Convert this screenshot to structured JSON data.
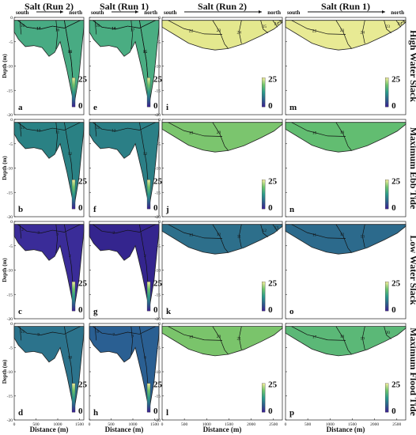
{
  "figure": {
    "column_headers": [
      "Salt (Run 2)",
      "Salt (Run 1)",
      "Salt (Run 2)",
      "Salt (Run 1)"
    ],
    "direction": {
      "left": "south",
      "right": "north"
    },
    "row_labels": [
      "High Water Slack",
      "Maximum Ebb Tide",
      "Low Water Slack",
      "Maximum Flood Tide"
    ],
    "y_label": "Depth (m)",
    "x_label": "Distance (m)",
    "colorbar": {
      "max": "25",
      "min": "0",
      "colors": [
        "#3b1f8f",
        "#2c5f8a",
        "#2a9a8a",
        "#6cc36c",
        "#f2ec9b"
      ]
    }
  },
  "chart_data": [
    {
      "panel": "a",
      "type": "heatmap",
      "title": "Salt (Run 2)",
      "row": "High Water Slack",
      "section": "left",
      "xlabel": "",
      "ylabel": "Depth (m)",
      "xlim": [
        0,
        1600
      ],
      "ylim": [
        -20,
        0
      ],
      "fill": "#48ab83",
      "contour_labels": [
        "14",
        "15",
        "16",
        "16",
        "17",
        "18"
      ]
    },
    {
      "panel": "e",
      "type": "heatmap",
      "title": "Salt (Run 1)",
      "row": "High Water Slack",
      "section": "left",
      "xlabel": "",
      "ylabel": "",
      "xlim": [
        0,
        1600
      ],
      "ylim": [
        -20,
        0
      ],
      "fill": "#4aad82",
      "contour_labels": [
        "14",
        "15",
        "16",
        "17",
        "16",
        "15"
      ]
    },
    {
      "panel": "i",
      "type": "heatmap",
      "title": "Salt (Run 2)",
      "row": "High Water Slack",
      "section": "right",
      "xlabel": "",
      "ylabel": "",
      "xlim": [
        0,
        2700
      ],
      "ylim": [
        -20,
        0
      ],
      "fill": "#e4e88e",
      "contour_labels": [
        "22",
        "23",
        "24",
        "25",
        "24",
        "23"
      ]
    },
    {
      "panel": "m",
      "type": "heatmap",
      "title": "Salt (Run 1)",
      "row": "High Water Slack",
      "section": "right",
      "xlabel": "",
      "ylabel": "",
      "xlim": [
        0,
        2700
      ],
      "ylim": [
        -20,
        0
      ],
      "fill": "#e8ea94",
      "contour_labels": [
        "22",
        "23",
        "24",
        "23",
        "24",
        "25"
      ]
    },
    {
      "panel": "b",
      "type": "heatmap",
      "row": "Maximum Ebb Tide",
      "section": "left",
      "xlabel": "",
      "ylabel": "Depth (m)",
      "xlim": [
        0,
        1600
      ],
      "ylim": [
        -20,
        0
      ],
      "fill": "#2a8184",
      "contour_labels": [
        "13",
        "12",
        "11",
        "11"
      ]
    },
    {
      "panel": "f",
      "type": "heatmap",
      "row": "Maximum Ebb Tide",
      "section": "left",
      "xlabel": "",
      "ylabel": "",
      "xlim": [
        0,
        1600
      ],
      "ylim": [
        -20,
        0
      ],
      "fill": "#2b7f86",
      "contour_labels": [
        "12",
        "12",
        "11"
      ]
    },
    {
      "panel": "j",
      "type": "heatmap",
      "row": "Maximum Ebb Tide",
      "section": "right",
      "xlabel": "",
      "ylabel": "",
      "xlim": [
        0,
        2700
      ],
      "ylim": [
        -20,
        0
      ],
      "fill": "#7bc56e",
      "contour_labels": [
        "19",
        "20"
      ]
    },
    {
      "panel": "n",
      "type": "heatmap",
      "row": "Maximum Ebb Tide",
      "section": "right",
      "xlabel": "",
      "ylabel": "",
      "xlim": [
        0,
        2700
      ],
      "ylim": [
        -20,
        0
      ],
      "fill": "#62bd71",
      "contour_labels": [
        "18",
        "19"
      ]
    },
    {
      "panel": "c",
      "type": "heatmap",
      "row": "Low Water Slack",
      "section": "left",
      "xlabel": "",
      "ylabel": "Depth (m)",
      "xlim": [
        0,
        1600
      ],
      "ylim": [
        -20,
        0
      ],
      "fill": "#3a2c98",
      "contour_labels": [
        "3",
        "2",
        "2",
        "3"
      ]
    },
    {
      "panel": "g",
      "type": "heatmap",
      "row": "Low Water Slack",
      "section": "left",
      "xlabel": "",
      "ylabel": "",
      "xlim": [
        0,
        1600
      ],
      "ylim": [
        -20,
        0
      ],
      "fill": "#34258e",
      "contour_labels": [
        "2",
        "2"
      ]
    },
    {
      "panel": "k",
      "type": "heatmap",
      "row": "Low Water Slack",
      "section": "right",
      "xlabel": "",
      "ylabel": "",
      "xlim": [
        0,
        2700
      ],
      "ylim": [
        -20,
        0
      ],
      "fill": "#2d6f8b",
      "contour_labels": [
        "13",
        "12",
        "11",
        "12",
        "13"
      ]
    },
    {
      "panel": "o",
      "type": "heatmap",
      "row": "Low Water Slack",
      "section": "right",
      "xlabel": "",
      "ylabel": "",
      "xlim": [
        0,
        2700
      ],
      "ylim": [
        -20,
        0
      ],
      "fill": "#2c6a8c",
      "contour_labels": [
        "11",
        "12",
        "13"
      ]
    },
    {
      "panel": "d",
      "type": "heatmap",
      "row": "Maximum Flood Tide",
      "section": "left",
      "xlabel": "Distance (m)",
      "ylabel": "Depth (m)",
      "xlim": [
        0,
        1600
      ],
      "ylim": [
        -20,
        0
      ],
      "xticks": [
        "0",
        "500",
        "1000",
        "1500"
      ],
      "fill": "#2c738c",
      "contour_labels": [
        "9",
        "10",
        "11"
      ]
    },
    {
      "panel": "h",
      "type": "heatmap",
      "row": "Maximum Flood Tide",
      "section": "left",
      "xlabel": "Distance (m)",
      "ylabel": "",
      "xlim": [
        0,
        1600
      ],
      "ylim": [
        -20,
        0
      ],
      "xticks": [
        "0",
        "500",
        "1000",
        "1500"
      ],
      "fill": "#2a5f92",
      "contour_labels": [
        "7",
        "8",
        "8",
        "9"
      ]
    },
    {
      "panel": "l",
      "type": "heatmap",
      "row": "Maximum Flood Tide",
      "section": "right",
      "xlabel": "Distance (m)",
      "ylabel": "",
      "xlim": [
        0,
        2700
      ],
      "ylim": [
        -20,
        0
      ],
      "xticks": [
        "0",
        "500",
        "1000",
        "1500",
        "2000",
        "2500"
      ],
      "fill": "#7ac46b",
      "contour_labels": [
        "19",
        "20",
        "21"
      ]
    },
    {
      "panel": "p",
      "type": "heatmap",
      "row": "Maximum Flood Tide",
      "section": "right",
      "xlabel": "Distance (m)",
      "ylabel": "",
      "xlim": [
        0,
        2700
      ],
      "ylim": [
        -20,
        0
      ],
      "xticks": [
        "0",
        "500",
        "1000",
        "1500",
        "2000",
        "2500"
      ],
      "fill": "#5bb877",
      "contour_labels": [
        "17",
        "18",
        "19",
        "20"
      ]
    }
  ]
}
